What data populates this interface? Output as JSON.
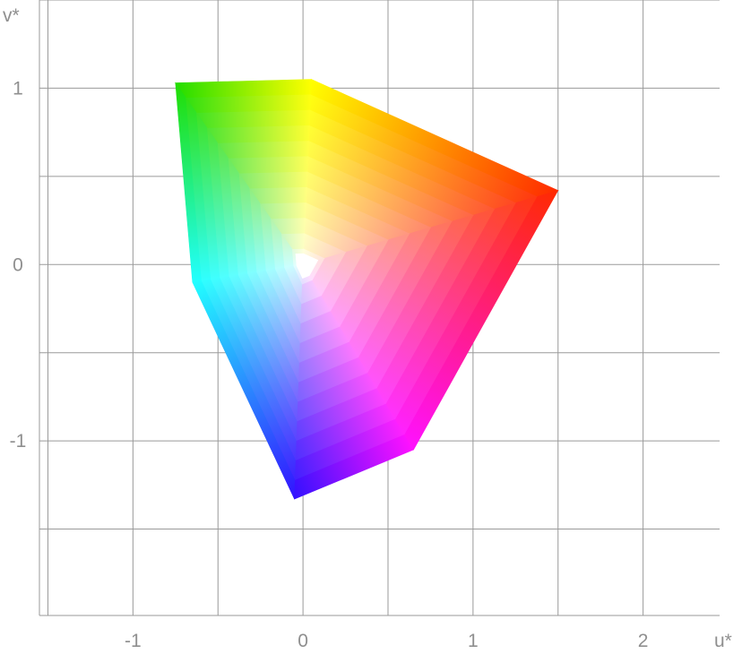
{
  "chart_data": {
    "type": "scatter",
    "title": "",
    "xlabel": "u*",
    "ylabel": "v*",
    "xlim": [
      -1.55,
      2.45
    ],
    "ylim": [
      -1.99,
      1.5
    ],
    "grid": true,
    "grid_step": 0.5,
    "x_tick_labels": [
      {
        "value": -1,
        "label": "-1"
      },
      {
        "value": 0,
        "label": "0"
      },
      {
        "value": 1,
        "label": "1"
      },
      {
        "value": 2,
        "label": "2"
      }
    ],
    "y_tick_labels": [
      {
        "value": 1,
        "label": "1"
      },
      {
        "value": 0,
        "label": "0"
      },
      {
        "value": -1,
        "label": "-1"
      }
    ],
    "gamut_corners": [
      {
        "name": "white",
        "u": 0.0,
        "v": 0.0,
        "color": "#ffffff"
      },
      {
        "name": "red",
        "u": 1.5,
        "v": 0.42,
        "color": "#ff2a00"
      },
      {
        "name": "yellow",
        "u": 0.05,
        "v": 1.05,
        "color": "#ffff00"
      },
      {
        "name": "green",
        "u": -0.75,
        "v": 1.03,
        "color": "#22dd00"
      },
      {
        "name": "cyan",
        "u": -0.65,
        "v": -0.1,
        "color": "#22ffff"
      },
      {
        "name": "blue",
        "u": -0.05,
        "v": -1.33,
        "color": "#3311ff"
      },
      {
        "name": "magenta",
        "u": 0.65,
        "v": -1.05,
        "color": "#ff11ff"
      }
    ],
    "layer_count": 12
  },
  "colors": {
    "grid": "#9a9a9a",
    "background": "#ffffff",
    "tick_text": "#8f8f8f"
  }
}
